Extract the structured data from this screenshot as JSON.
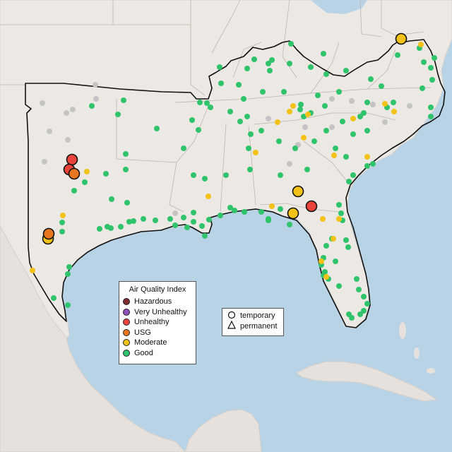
{
  "legend": {
    "title": "Air Quality Index",
    "levels": [
      {
        "label": "Hazardous",
        "color": "#7e2b2b"
      },
      {
        "label": "Very Unhealthy",
        "color": "#8f4fb6"
      },
      {
        "label": "Unhealthy",
        "color": "#e8443b"
      },
      {
        "label": "USG",
        "color": "#e8761e"
      },
      {
        "label": "Moderate",
        "color": "#f2c218"
      },
      {
        "label": "Good",
        "color": "#2fc46b"
      }
    ]
  },
  "site_legend": {
    "temporary": "temporary",
    "permanent": "permanent",
    "temporary_icon": "circle-outline-icon",
    "permanent_icon": "triangle-outline-icon"
  },
  "colors": {
    "water": "#b9d3e6",
    "land": "#ece8e4",
    "no_data": "#c4c4c4"
  }
}
